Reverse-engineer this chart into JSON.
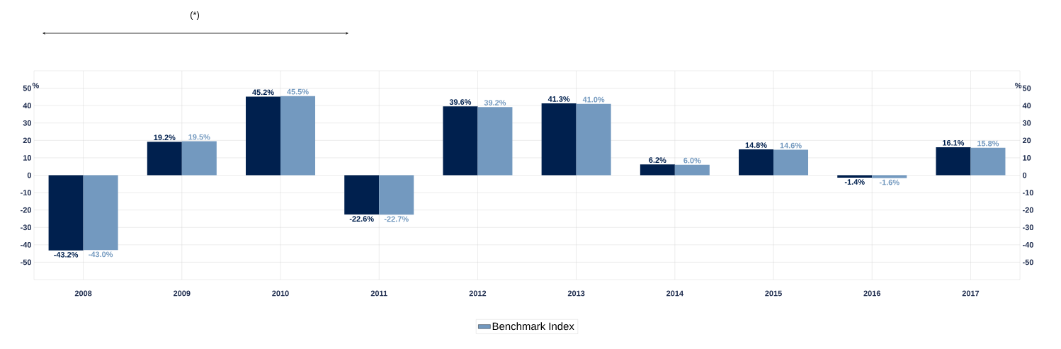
{
  "chart_data": {
    "type": "bar",
    "categories": [
      "2008",
      "2009",
      "2010",
      "2011",
      "2012",
      "2013",
      "2014",
      "2015",
      "2016",
      "2017"
    ],
    "series": [
      {
        "color": "#00204e",
        "values": [
          -43.2,
          19.2,
          45.2,
          -22.6,
          39.6,
          41.3,
          6.2,
          14.8,
          -1.4,
          16.1
        ],
        "value_labels": [
          "-43.2%",
          "19.2%",
          "45.2%",
          "-22.6%",
          "39.6%",
          "41.3%",
          "6.2%",
          "14.8%",
          "-1.4%",
          "16.1%"
        ]
      },
      {
        "name": "Benchmark Index",
        "color": "#7399bf",
        "values": [
          -43.0,
          19.5,
          45.5,
          -22.7,
          39.2,
          41.0,
          6.0,
          14.6,
          -1.6,
          15.8
        ],
        "value_labels": [
          "-43.0%",
          "19.5%",
          "45.5%",
          "-22.7%",
          "39.2%",
          "41.0%",
          "6.0%",
          "14.6%",
          "-1.6%",
          "15.8%"
        ]
      }
    ],
    "ylabel": "%",
    "y2label": "%",
    "ylim": [
      -60,
      60
    ],
    "yticks": [
      -50,
      -40,
      -30,
      -20,
      -10,
      0,
      10,
      20,
      30,
      40,
      50
    ],
    "y2lim": [
      -60,
      60
    ],
    "y2ticks": [
      -50,
      -40,
      -30,
      -20,
      -10,
      0,
      10,
      20,
      30,
      40,
      50
    ],
    "annotations": [
      "(*)"
    ],
    "grid": true,
    "legend": "bottom"
  }
}
